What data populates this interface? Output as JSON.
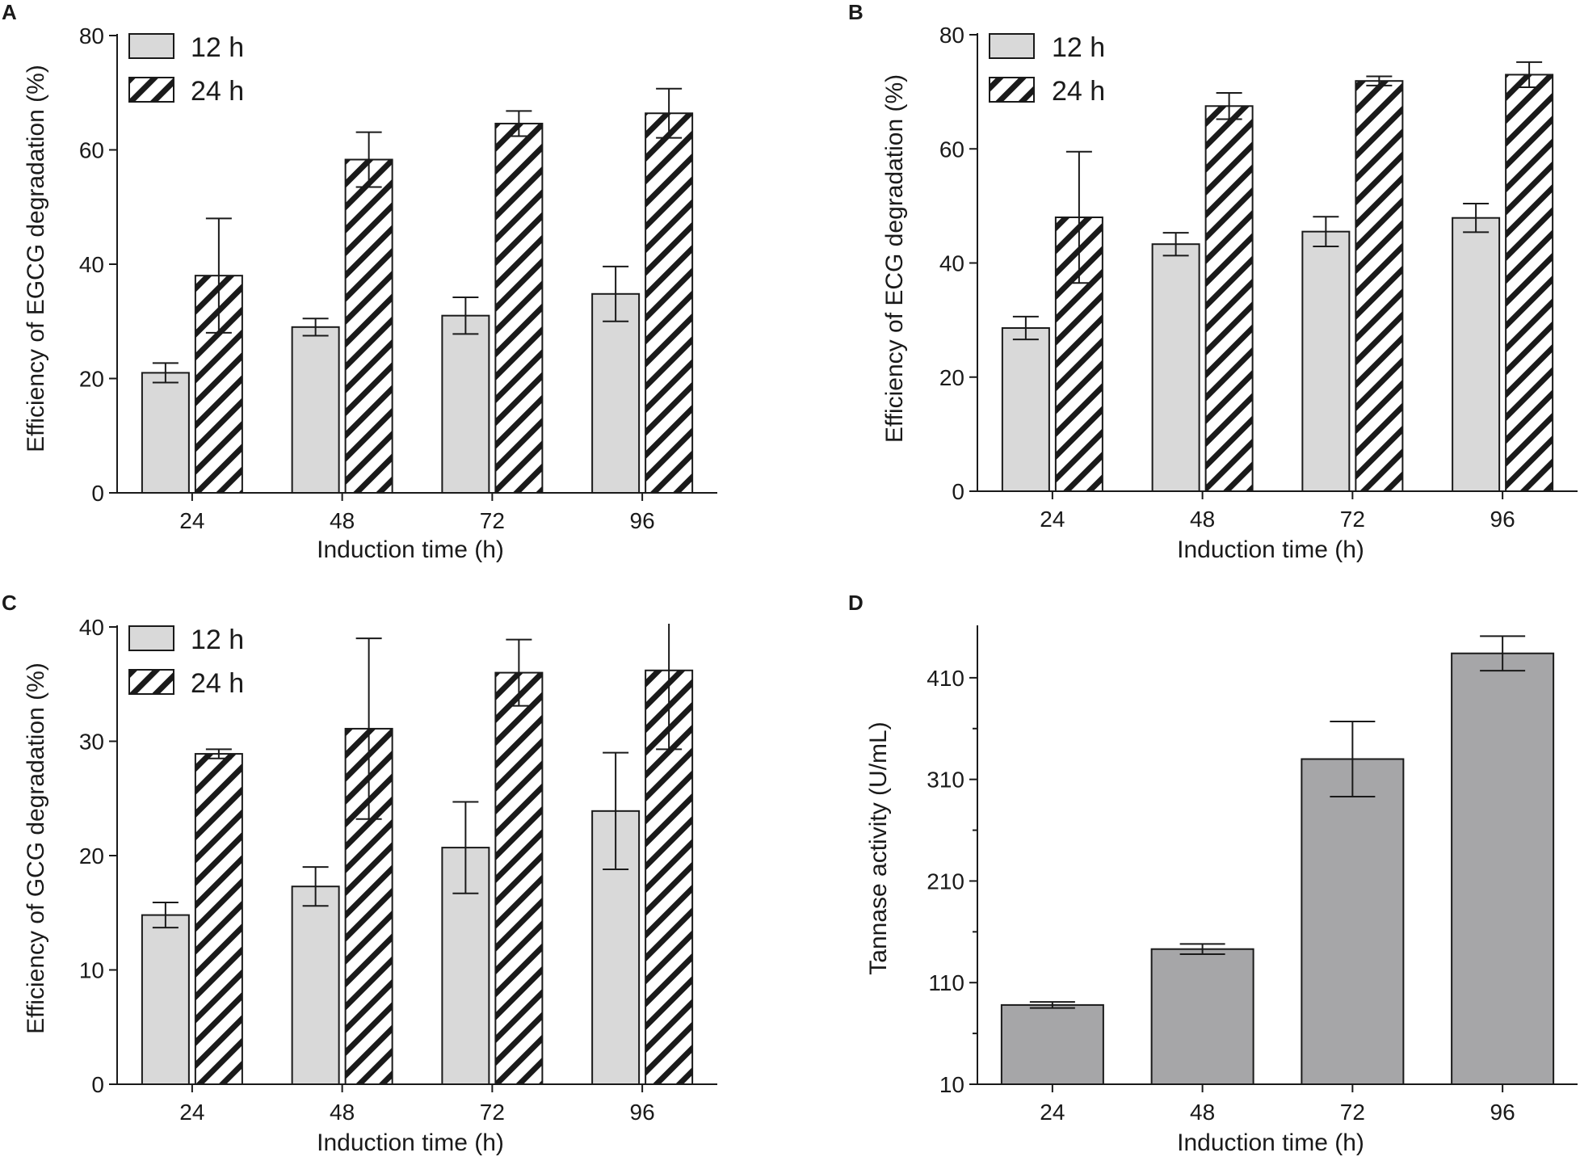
{
  "figure": {
    "colors": {
      "bar12": "#d9d9d9",
      "bar24": "#ffffff",
      "hatch": "#1a1a1a",
      "barD": "#a6a6a8",
      "axis": "#1a1a1a"
    },
    "panels": [
      {
        "letter": "A",
        "chart_data": {
          "type": "bar",
          "categories": [
            "24",
            "48",
            "72",
            "96"
          ],
          "series": [
            {
              "name": "12 h",
              "values": [
                21,
                29,
                31,
                34.8
              ],
              "errors": [
                1.7,
                1.5,
                3.2,
                4.8
              ]
            },
            {
              "name": "24 h",
              "values": [
                38,
                58.3,
                64.6,
                66.4
              ],
              "errors": [
                10,
                4.8,
                2.2,
                4.3
              ]
            }
          ],
          "xlabel": "Induction time (h)",
          "ylabel": "Efficiency of EGCG degradation (%)",
          "ylim": [
            0,
            80
          ],
          "yticks": [
            "0",
            "20",
            "40",
            "60",
            "80"
          ],
          "legend": [
            "12 h",
            "24 h"
          ]
        }
      },
      {
        "letter": "B",
        "chart_data": {
          "type": "bar",
          "categories": [
            "24",
            "48",
            "72",
            "96"
          ],
          "series": [
            {
              "name": "12 h",
              "values": [
                28.6,
                43.3,
                45.5,
                47.9
              ],
              "errors": [
                2,
                2,
                2.6,
                2.5
              ]
            },
            {
              "name": "24 h",
              "values": [
                48,
                67.5,
                71.9,
                73
              ],
              "errors": [
                11.5,
                2.3,
                0.8,
                2.2
              ]
            }
          ],
          "xlabel": "Induction time (h)",
          "ylabel": "Efficiency of ECG degradation (%)",
          "ylim": [
            0,
            80
          ],
          "yticks": [
            "0",
            "20",
            "40",
            "60",
            "80"
          ],
          "legend": [
            "12 h",
            "24 h"
          ]
        }
      },
      {
        "letter": "C",
        "chart_data": {
          "type": "bar",
          "categories": [
            "24",
            "48",
            "72",
            "96"
          ],
          "series": [
            {
              "name": "12 h",
              "values": [
                14.8,
                17.3,
                20.7,
                23.9
              ],
              "errors": [
                1.1,
                1.7,
                4,
                5.1
              ]
            },
            {
              "name": "24 h",
              "values": [
                28.9,
                31.1,
                36,
                36.2
              ],
              "errors": [
                0.4,
                7.9,
                2.9,
                6.9
              ]
            }
          ],
          "xlabel": "Induction time (h)",
          "ylabel": "Efficiency of GCG degradation (%)",
          "ylim": [
            0,
            40
          ],
          "yticks": [
            "0",
            "10",
            "20",
            "30",
            "40"
          ],
          "legend": [
            "12 h",
            "24 h"
          ]
        }
      },
      {
        "letter": "D",
        "chart_data": {
          "type": "bar",
          "categories": [
            "24",
            "48",
            "72",
            "96"
          ],
          "series": [
            {
              "name": "Tannase activity",
              "values": [
                88,
                143,
                330,
                434
              ],
              "errors": [
                3,
                5,
                37,
                17
              ]
            }
          ],
          "xlabel": "Induction time (h)",
          "ylabel": "Tannase activity (U/mL)",
          "ylim": [
            10,
            460
          ],
          "yticks": [
            "10",
            "110",
            "210",
            "310",
            "410"
          ],
          "legend": []
        }
      }
    ]
  }
}
